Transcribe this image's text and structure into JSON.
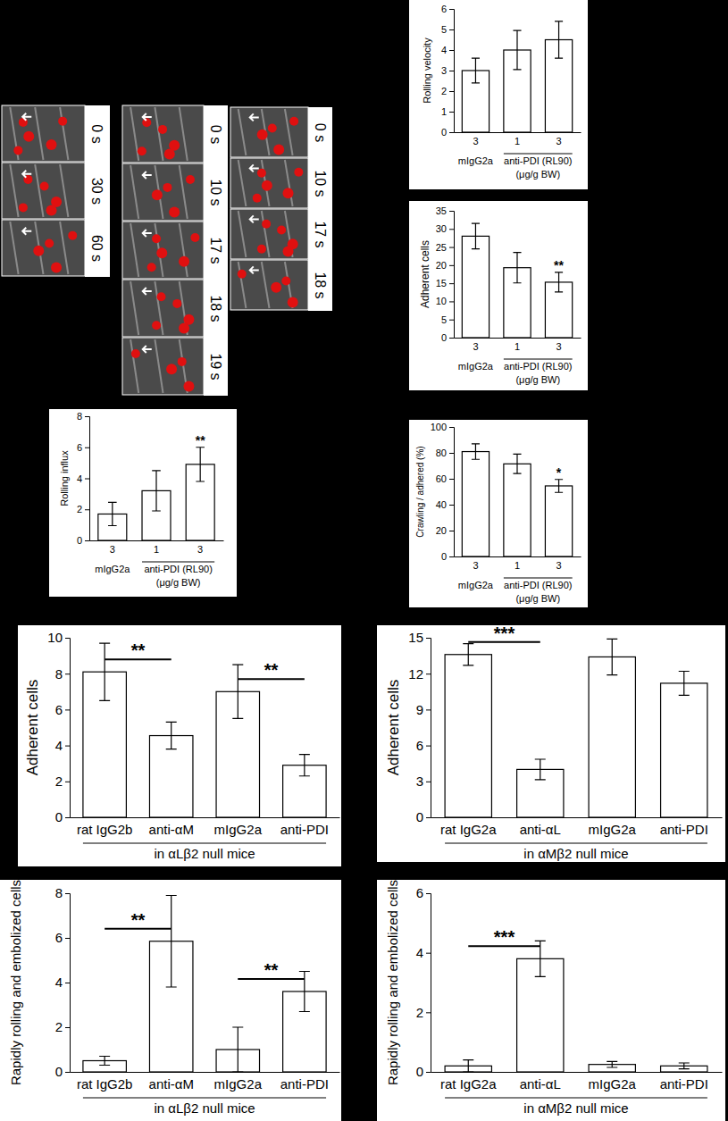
{
  "micrographs": {
    "columns": [
      [
        "0 s",
        "30 s",
        "60 s"
      ],
      [
        "0 s",
        "10 s",
        "17 s",
        "18 s",
        "19 s"
      ],
      [
        "0 s",
        "10 s",
        "17 s",
        "18 s"
      ]
    ]
  },
  "chart_data": [
    {
      "type": "bar",
      "y_label": "Rolling velocity",
      "categories": [
        "3",
        "1",
        "3"
      ],
      "group_labels": [
        "mIgG2a",
        "anti-PDI (RL90)"
      ],
      "x_label": "(μg/g BW)",
      "values": [
        3.0,
        4.0,
        4.5
      ],
      "errors": [
        0.6,
        0.95,
        0.9
      ],
      "color": "#ffffff",
      "ylim": [
        0,
        6
      ],
      "yticks": [
        0,
        1,
        2,
        3,
        4,
        5,
        6
      ]
    },
    {
      "type": "bar",
      "y_label": "Adherent cells",
      "categories": [
        "3",
        "1",
        "3"
      ],
      "group_labels": [
        "mIgG2a",
        "anti-PDI (RL90)"
      ],
      "x_label": "(μg/g BW)",
      "values": [
        28,
        19.3,
        15.3
      ],
      "errors": [
        3.5,
        4.2,
        2.7
      ],
      "significance": [
        null,
        null,
        "**"
      ],
      "color": "#ffffff",
      "ylim": [
        0,
        35
      ],
      "yticks": [
        0,
        5,
        10,
        15,
        20,
        25,
        30,
        35
      ]
    },
    {
      "type": "bar",
      "y_label": "Rolling influx",
      "categories": [
        "3",
        "1",
        "3"
      ],
      "group_labels": [
        "mIgG2a",
        "anti-PDI (RL90)"
      ],
      "x_label": "(μg/g BW)",
      "values": [
        1.7,
        3.2,
        4.9
      ],
      "errors": [
        0.75,
        1.3,
        1.1
      ],
      "significance": [
        null,
        null,
        "**"
      ],
      "color": "#ffffff",
      "ylim": [
        0,
        8
      ],
      "yticks": [
        0,
        2,
        4,
        6,
        8
      ]
    },
    {
      "type": "bar",
      "y_label": "Crawling / adhered (%)",
      "categories": [
        "3",
        "1",
        "3"
      ],
      "group_labels": [
        "mIgG2a",
        "anti-PDI (RL90)"
      ],
      "x_label": "(μg/g BW)",
      "values": [
        81,
        71.5,
        54.5
      ],
      "errors": [
        6,
        7.5,
        5
      ],
      "significance": [
        null,
        null,
        "*"
      ],
      "color": "#ffffff",
      "ylim": [
        0,
        100
      ],
      "yticks": [
        0,
        20,
        40,
        60,
        80,
        100
      ]
    },
    {
      "type": "bar",
      "y_label": "Adherent cells",
      "categories": [
        "rat IgG2b",
        "anti-αM",
        "mIgG2a",
        "anti-PDI"
      ],
      "x_label": "in αLβ2 null mice",
      "values": [
        8.1,
        4.55,
        7.0,
        2.9
      ],
      "errors": [
        1.6,
        0.75,
        1.5,
        0.6
      ],
      "significance_pairs": [
        {
          "pair": [
            0,
            1
          ],
          "label": "**"
        },
        {
          "pair": [
            2,
            3
          ],
          "label": "**"
        }
      ],
      "color": "#ffffff",
      "ylim": [
        0,
        10
      ],
      "yticks": [
        0,
        2,
        4,
        6,
        8,
        10
      ]
    },
    {
      "type": "bar",
      "y_label": "Adherent cells",
      "categories": [
        "rat IgG2a",
        "anti-αL",
        "mIgG2a",
        "anti-PDI"
      ],
      "x_label": "in αMβ2 null mice",
      "values": [
        13.6,
        4.0,
        13.4,
        11.2
      ],
      "errors": [
        0.9,
        0.85,
        1.5,
        1.0
      ],
      "significance_pairs": [
        {
          "pair": [
            0,
            1
          ],
          "label": "***"
        }
      ],
      "color": "#ffffff",
      "ylim": [
        0,
        15
      ],
      "yticks": [
        0,
        3,
        6,
        9,
        12,
        15
      ]
    },
    {
      "type": "bar",
      "y_label": "Rapidly rolling and embolized cells",
      "categories": [
        "rat IgG2b",
        "anti-αM",
        "mIgG2a",
        "anti-PDI"
      ],
      "x_label": "in αLβ2 null mice",
      "values": [
        0.5,
        5.85,
        1.0,
        3.6
      ],
      "errors": [
        0.2,
        2.05,
        1.0,
        0.9
      ],
      "significance_pairs": [
        {
          "pair": [
            0,
            1
          ],
          "label": "**"
        },
        {
          "pair": [
            2,
            3
          ],
          "label": "**"
        }
      ],
      "color": "#ffffff",
      "ylim": [
        0,
        8
      ],
      "yticks": [
        0,
        2,
        4,
        6,
        8
      ]
    },
    {
      "type": "bar",
      "y_label": "Rapidly rolling and embolized cells",
      "categories": [
        "rat IgG2a",
        "anti-αL",
        "mIgG2a",
        "anti-PDI"
      ],
      "x_label": "in αMβ2 null mice",
      "values": [
        0.2,
        3.8,
        0.25,
        0.2
      ],
      "errors": [
        0.2,
        0.6,
        0.1,
        0.1
      ],
      "significance_pairs": [
        {
          "pair": [
            0,
            1
          ],
          "label": "***"
        }
      ],
      "color": "#ffffff",
      "ylim": [
        0,
        6
      ],
      "yticks": [
        0,
        2,
        4,
        6
      ]
    }
  ]
}
